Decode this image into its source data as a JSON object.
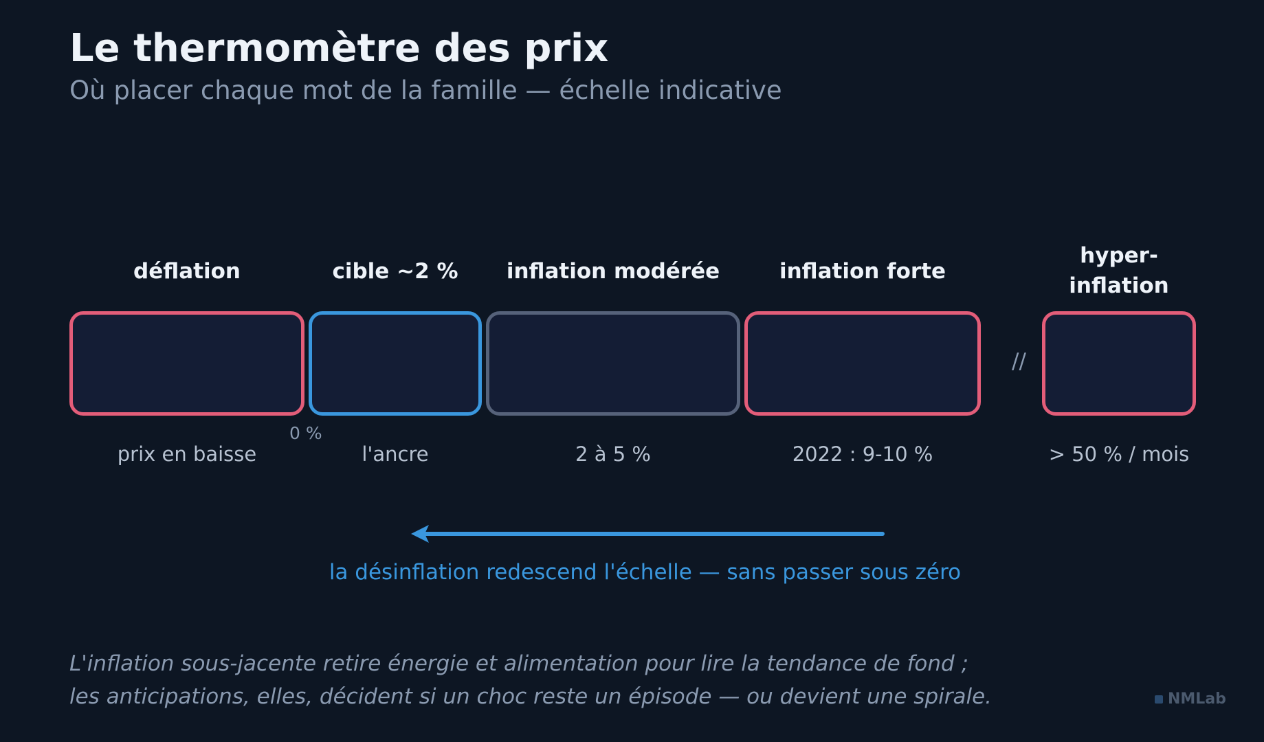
{
  "header": {
    "title": "Le thermomètre des prix",
    "subtitle": "Où placer chaque mot de la famille — échelle indicative"
  },
  "scale": {
    "segments": [
      {
        "label": "déflation",
        "sublabel": "prix en baisse",
        "color": "#e35d79"
      },
      {
        "label": "cible ~2 %",
        "sublabel": "l'ancre",
        "color": "#3a97de"
      },
      {
        "label": "inflation modérée",
        "sublabel": "2 à 5 %",
        "color": "#56627a"
      },
      {
        "label": "inflation forte",
        "sublabel": "2022 : 9-10 %",
        "color": "#e35d79"
      },
      {
        "label": "hyper-\ninflation",
        "sublabel": "> 50 % / mois",
        "color": "#e35d79"
      }
    ],
    "zero_marker": "0 %",
    "break_symbol": "//"
  },
  "arrow": {
    "caption": "la désinflation redescend l'échelle — sans passer sous zéro",
    "color": "#3a97de"
  },
  "footer": {
    "line1": "L'inflation sous-jacente retire énergie et alimentation pour lire la tendance de fond ;",
    "line2": "les anticipations, elles, décident si un choc reste un épisode — ou devient une spirale.",
    "brand": "NMLab"
  }
}
